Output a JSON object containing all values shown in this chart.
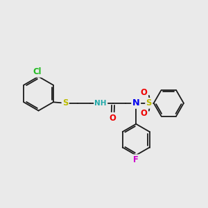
{
  "background_color": "#eaeaea",
  "bond_color": "#1a1a1a",
  "atom_colors": {
    "Cl": "#22bb22",
    "S": "#bbbb00",
    "N": "#0000ee",
    "O": "#ee0000",
    "F": "#cc00cc",
    "H": "#22aaaa",
    "C": "#1a1a1a"
  },
  "lw": 1.3,
  "font_size": 7.8,
  "figsize": [
    3.0,
    3.0
  ],
  "dpi": 100,
  "xlim": [
    0,
    10
  ],
  "ylim": [
    0,
    10
  ]
}
